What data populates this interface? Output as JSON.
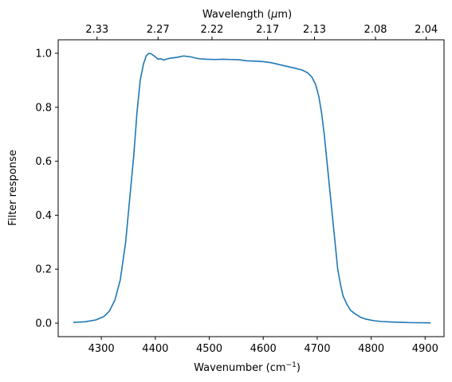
{
  "chart_data": {
    "type": "line",
    "xlabel": "Wavenumber (cm",
    "xlabel_sup": "−1",
    "xlabel_tail": ")",
    "ylabel": "Filter response",
    "top_xlabel_pre": "Wavelength (",
    "top_xlabel_mu": "μ",
    "top_xlabel_post": "m)",
    "xlim": [
      4220,
      4935
    ],
    "ylim": [
      -0.05,
      1.05
    ],
    "grid": false,
    "line_color": "#1f77b4",
    "x_ticks": [
      {
        "value": 4300,
        "label": "4300"
      },
      {
        "value": 4400,
        "label": "4400"
      },
      {
        "value": 4500,
        "label": "4500"
      },
      {
        "value": 4600,
        "label": "4600"
      },
      {
        "value": 4700,
        "label": "4700"
      },
      {
        "value": 4800,
        "label": "4800"
      },
      {
        "value": 4900,
        "label": "4900"
      }
    ],
    "y_ticks": [
      {
        "value": 0.0,
        "label": "0.0"
      },
      {
        "value": 0.2,
        "label": "0.2"
      },
      {
        "value": 0.4,
        "label": "0.4"
      },
      {
        "value": 0.6,
        "label": "0.6"
      },
      {
        "value": 0.8,
        "label": "0.8"
      },
      {
        "value": 1.0,
        "label": "1.0"
      }
    ],
    "top_ticks": [
      {
        "value": 4292,
        "label": "2.33"
      },
      {
        "value": 4405,
        "label": "2.27"
      },
      {
        "value": 4505,
        "label": "2.22"
      },
      {
        "value": 4608,
        "label": "2.17"
      },
      {
        "value": 4695,
        "label": "2.13"
      },
      {
        "value": 4808,
        "label": "2.08"
      },
      {
        "value": 4902,
        "label": "2.04"
      }
    ],
    "series": [
      {
        "x": [
          4248,
          4270,
          4290,
          4305,
          4315,
          4325,
          4335,
          4345,
          4352,
          4360,
          4366,
          4372,
          4378,
          4383,
          4388,
          4392,
          4398,
          4405,
          4410,
          4415,
          4420,
          4428,
          4440,
          4452,
          4465,
          4480,
          4495,
          4510,
          4525,
          4540,
          4555,
          4570,
          4585,
          4600,
          4615,
          4630,
          4645,
          4660,
          4672,
          4682,
          4690,
          4697,
          4703,
          4708,
          4713,
          4718,
          4723,
          4728,
          4733,
          4738,
          4743,
          4748,
          4755,
          4762,
          4770,
          4780,
          4790,
          4805,
          4820,
          4840,
          4870,
          4910
        ],
        "y": [
          0.003,
          0.005,
          0.012,
          0.025,
          0.045,
          0.085,
          0.16,
          0.3,
          0.45,
          0.62,
          0.78,
          0.9,
          0.96,
          0.99,
          1.0,
          0.998,
          0.99,
          0.978,
          0.98,
          0.975,
          0.978,
          0.982,
          0.985,
          0.99,
          0.987,
          0.98,
          0.978,
          0.977,
          0.978,
          0.977,
          0.976,
          0.972,
          0.971,
          0.969,
          0.965,
          0.958,
          0.951,
          0.944,
          0.938,
          0.928,
          0.912,
          0.885,
          0.84,
          0.78,
          0.7,
          0.6,
          0.5,
          0.4,
          0.3,
          0.2,
          0.145,
          0.1,
          0.07,
          0.047,
          0.035,
          0.022,
          0.015,
          0.009,
          0.006,
          0.004,
          0.002,
          0.001
        ]
      }
    ]
  }
}
